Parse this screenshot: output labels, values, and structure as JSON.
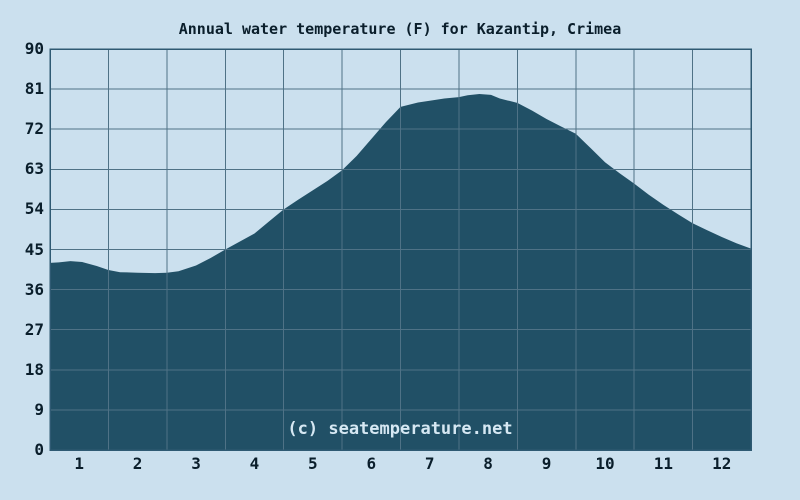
{
  "watermark": "(c) seatemperature.net",
  "colors": {
    "background": "#cbe0ee",
    "area_fill": "#215066",
    "grid_line": "#4f7286",
    "frame": "#2f5a73",
    "text": "#0a1e2b",
    "watermark_text": "#d6e8f3"
  },
  "chart_data": {
    "type": "area",
    "title": "Annual water temperature (F) for Kazantip, Crimea",
    "xlabel": "",
    "ylabel": "",
    "ylim": [
      0,
      90
    ],
    "y_ticks": [
      0,
      9,
      18,
      27,
      36,
      45,
      54,
      63,
      72,
      81,
      90
    ],
    "x_tick_labels": [
      "1",
      "2",
      "3",
      "4",
      "5",
      "6",
      "7",
      "8",
      "9",
      "10",
      "11",
      "12"
    ],
    "grid": "on",
    "legend": "none",
    "categories": [
      "1",
      "2",
      "3",
      "4",
      "5",
      "6",
      "7",
      "8",
      "9",
      "10",
      "11",
      "12"
    ],
    "series": [
      {
        "name": "Water temperature (F)",
        "values": [
          42.1,
          39.8,
          41.4,
          48.6,
          58.3,
          69.8,
          78.4,
          79.8,
          74.3,
          64.6,
          55.0,
          47.8
        ]
      }
    ],
    "profile_points_month_vs_f": [
      [
        0,
        42.0
      ],
      [
        0.15,
        42.1
      ],
      [
        0.35,
        42.4
      ],
      [
        0.55,
        42.2
      ],
      [
        0.8,
        41.3
      ],
      [
        1.0,
        40.4
      ],
      [
        1.2,
        39.9
      ],
      [
        1.5,
        39.8
      ],
      [
        1.8,
        39.7
      ],
      [
        2.0,
        39.8
      ],
      [
        2.2,
        40.1
      ],
      [
        2.5,
        41.4
      ],
      [
        2.75,
        43.1
      ],
      [
        3.0,
        45.0
      ],
      [
        3.25,
        46.8
      ],
      [
        3.5,
        48.6
      ],
      [
        3.75,
        51.3
      ],
      [
        4.0,
        54.0
      ],
      [
        4.25,
        56.2
      ],
      [
        4.5,
        58.3
      ],
      [
        4.75,
        60.4
      ],
      [
        5.0,
        62.8
      ],
      [
        5.25,
        66.0
      ],
      [
        5.5,
        69.8
      ],
      [
        5.75,
        73.6
      ],
      [
        6.0,
        77.0
      ],
      [
        6.3,
        78.0
      ],
      [
        6.5,
        78.4
      ],
      [
        6.75,
        78.9
      ],
      [
        7.0,
        79.2
      ],
      [
        7.15,
        79.6
      ],
      [
        7.35,
        79.9
      ],
      [
        7.55,
        79.7
      ],
      [
        7.7,
        78.9
      ],
      [
        8.0,
        77.9
      ],
      [
        8.25,
        76.2
      ],
      [
        8.5,
        74.3
      ],
      [
        8.75,
        72.6
      ],
      [
        9.0,
        71.0
      ],
      [
        9.25,
        67.8
      ],
      [
        9.5,
        64.6
      ],
      [
        9.75,
        62.1
      ],
      [
        10.0,
        59.8
      ],
      [
        10.25,
        57.3
      ],
      [
        10.5,
        55.0
      ],
      [
        10.75,
        52.9
      ],
      [
        11.0,
        50.9
      ],
      [
        11.25,
        49.3
      ],
      [
        11.5,
        47.8
      ],
      [
        11.75,
        46.4
      ],
      [
        12.0,
        45.2
      ]
    ]
  }
}
